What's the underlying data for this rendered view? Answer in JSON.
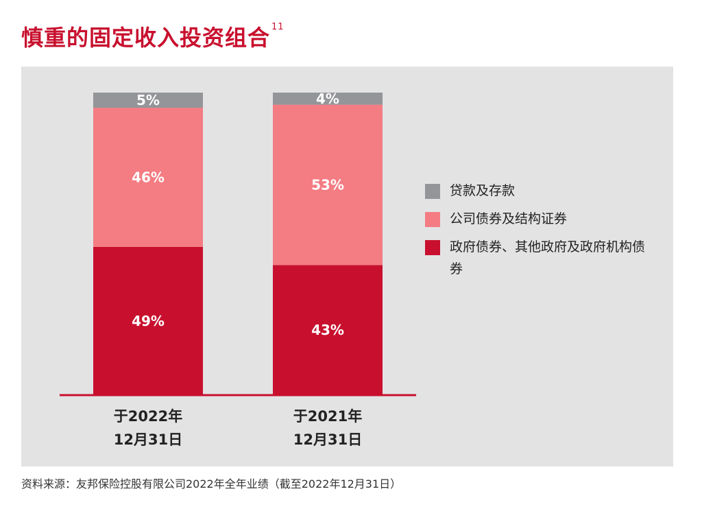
{
  "title": "慎重的固定收入投资组合",
  "title_note": "11",
  "source": "资料来源：友邦保险控股有限公司2022年全年业绩（截至2022年12月31日）",
  "colors": {
    "title": "#c8102e",
    "panel": "#e3e3e4",
    "axis": "#c8102e"
  },
  "chart_data": {
    "type": "bar",
    "stacked": true,
    "categories": [
      [
        "于2022年",
        "12月31日"
      ],
      [
        "于2021年",
        "12月31日"
      ]
    ],
    "series": [
      {
        "name": "政府债券、其他政府及政府机构债券",
        "values": [
          49,
          43
        ],
        "labels": [
          "49%",
          "43%"
        ],
        "color": "#c8102e"
      },
      {
        "name": "公司债券及结构证券",
        "values": [
          46,
          53
        ],
        "labels": [
          "46%",
          "53%"
        ],
        "color": "#f47c83"
      },
      {
        "name": "贷款及存款",
        "values": [
          5,
          4
        ],
        "labels": [
          "5%",
          "4%"
        ],
        "color": "#939598"
      }
    ],
    "ylim": [
      0,
      100
    ],
    "legend_position": "right"
  },
  "legend": [
    {
      "label": "贷款及存款",
      "color": "#939598"
    },
    {
      "label": "公司债券及结构证券",
      "color": "#f47c83"
    },
    {
      "label": "政府债券、其他政府及政府机构债券",
      "color": "#c8102e"
    }
  ]
}
